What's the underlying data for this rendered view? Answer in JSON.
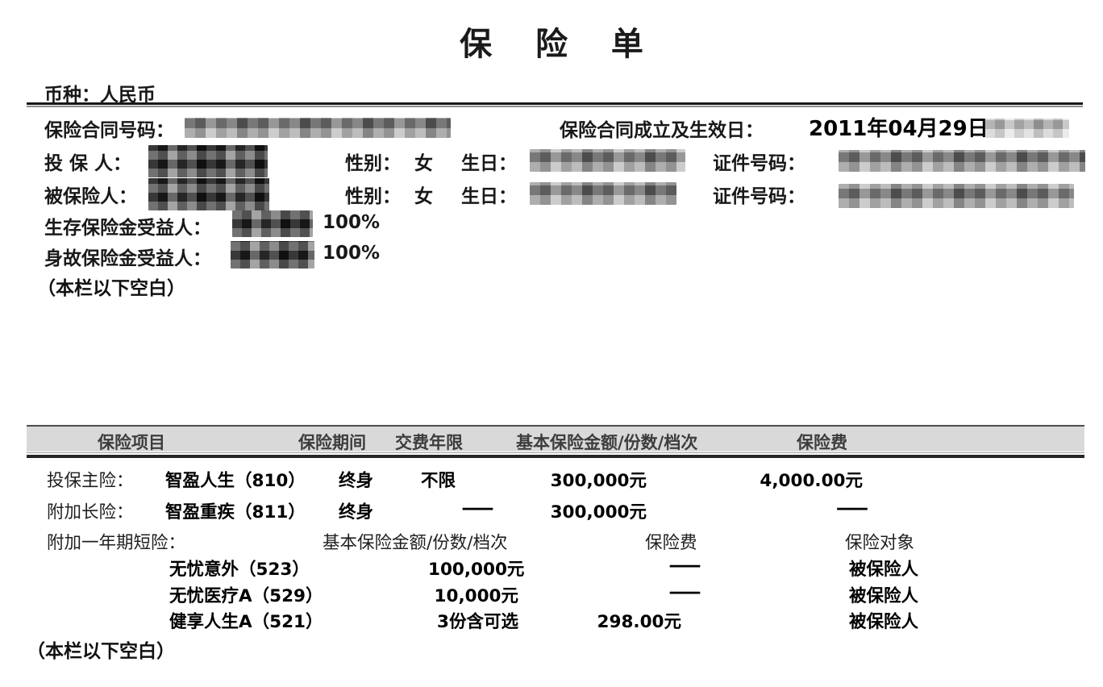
{
  "page": {
    "title": "保 险 单",
    "currency": "币种：人民币",
    "header": {
      "contract_no_label": "保险合同号码：",
      "effective_label": "保险合同成立及生效日：",
      "effective_date": "2011年04月29日",
      "applicant_label": "投 保 人：",
      "insured_label": "被保险人：",
      "gender_label": "性别：",
      "applicant_gender": "女",
      "insured_gender": "女",
      "birth_label": "生日：",
      "id_label": "证件号码：",
      "survival_beneficiary_label": "生存保险金受益人：",
      "survival_beneficiary_pct": "100%",
      "death_beneficiary_label": "身故保险金受益人：",
      "death_beneficiary_pct": "100%",
      "blank_note": "（本栏以下空白）"
    },
    "table": {
      "columns": [
        "保险项目",
        "保险期间",
        "交费年限",
        "基本保险金额/份数/档次",
        "保险费"
      ],
      "main": {
        "cat": "投保主险：",
        "name": "智盈人生（810）",
        "period": "终身",
        "years": "不限",
        "amount": "300,000元",
        "premium": "4,000.00元"
      },
      "rider_long": {
        "cat": "附加长险：",
        "name": "智盈重疾（811）",
        "period": "终身",
        "years": "——",
        "amount": "300,000元",
        "premium": "——"
      },
      "short_header": {
        "cat": "附加一年期短险：",
        "amount": "基本保险金额/份数/档次",
        "premium": "保险费",
        "target": "保险对象"
      },
      "short_rows": [
        {
          "name": "无忧意外（523）",
          "amount": "100,000元",
          "premium": "——",
          "target": "被保险人"
        },
        {
          "name": "无忧医疗A（529）",
          "amount": "10,000元",
          "premium": "——",
          "target": "被保险人"
        },
        {
          "name": "健享人生A（521）",
          "amount": "3份含可选",
          "premium": "298.00元",
          "target": "被保险人"
        }
      ],
      "blank_note": "（本栏以下空白）"
    }
  }
}
